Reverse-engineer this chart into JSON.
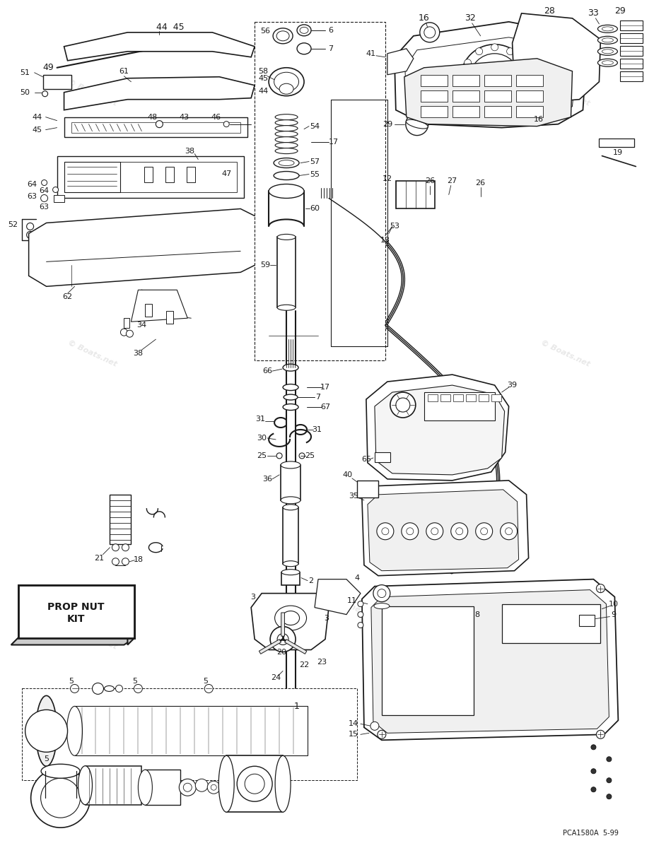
{
  "background_color": "#ffffff",
  "diagram_color": "#1a1a1a",
  "watermark_text": "© Boats.net",
  "watermark_color": "#cccccc",
  "footer_text": "PCA1580A  5-99",
  "footer_fontsize": 7,
  "prop_nut_label": "PROP NUT\nKIT",
  "fig_width": 9.25,
  "fig_height": 12.0,
  "dpi": 100
}
